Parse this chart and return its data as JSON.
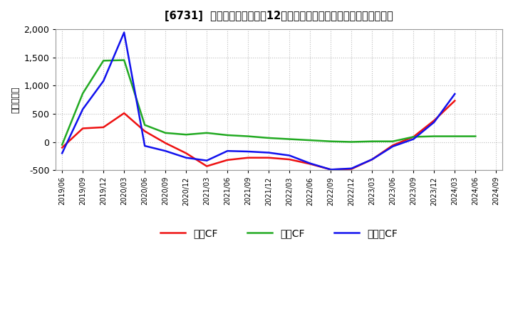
{
  "title": "[6731]  キャッシュフローの12か月移動合計の対前年同期増減額の推移",
  "ylabel": "（百万円）",
  "background_color": "#ffffff",
  "grid_color": "#bbbbbb",
  "plot_bg_color": "#ffffff",
  "ylim": [
    -500,
    2000
  ],
  "yticks": [
    -500,
    0,
    500,
    1000,
    1500,
    2000
  ],
  "legend_labels": [
    "営業CF",
    "投資CF",
    "フリーCF"
  ],
  "colors": {
    "営業CF": "#ee1111",
    "投資CF": "#22aa22",
    "フリーCF": "#1111ee"
  },
  "dates": [
    "2019/06",
    "2019/09",
    "2019/12",
    "2020/03",
    "2020/06",
    "2020/09",
    "2020/12",
    "2021/03",
    "2021/06",
    "2021/09",
    "2021/12",
    "2022/03",
    "2022/06",
    "2022/09",
    "2022/12",
    "2023/03",
    "2023/06",
    "2023/09",
    "2023/12",
    "2024/03",
    "2024/06",
    "2024/09"
  ],
  "営業CF": [
    -100,
    240,
    260,
    510,
    190,
    -20,
    -200,
    -430,
    -320,
    -280,
    -280,
    -310,
    -390,
    -490,
    -480,
    -310,
    -60,
    90,
    380,
    730,
    null,
    null
  ],
  "投資CF": [
    -50,
    860,
    1440,
    1450,
    300,
    160,
    130,
    160,
    120,
    100,
    70,
    50,
    30,
    10,
    0,
    10,
    10,
    90,
    100,
    100,
    100,
    null
  ],
  "フリーCF": [
    -200,
    580,
    1080,
    1940,
    -70,
    -160,
    -280,
    -330,
    -160,
    -170,
    -190,
    -240,
    -380,
    -490,
    -470,
    -310,
    -80,
    50,
    350,
    850,
    null,
    null
  ]
}
